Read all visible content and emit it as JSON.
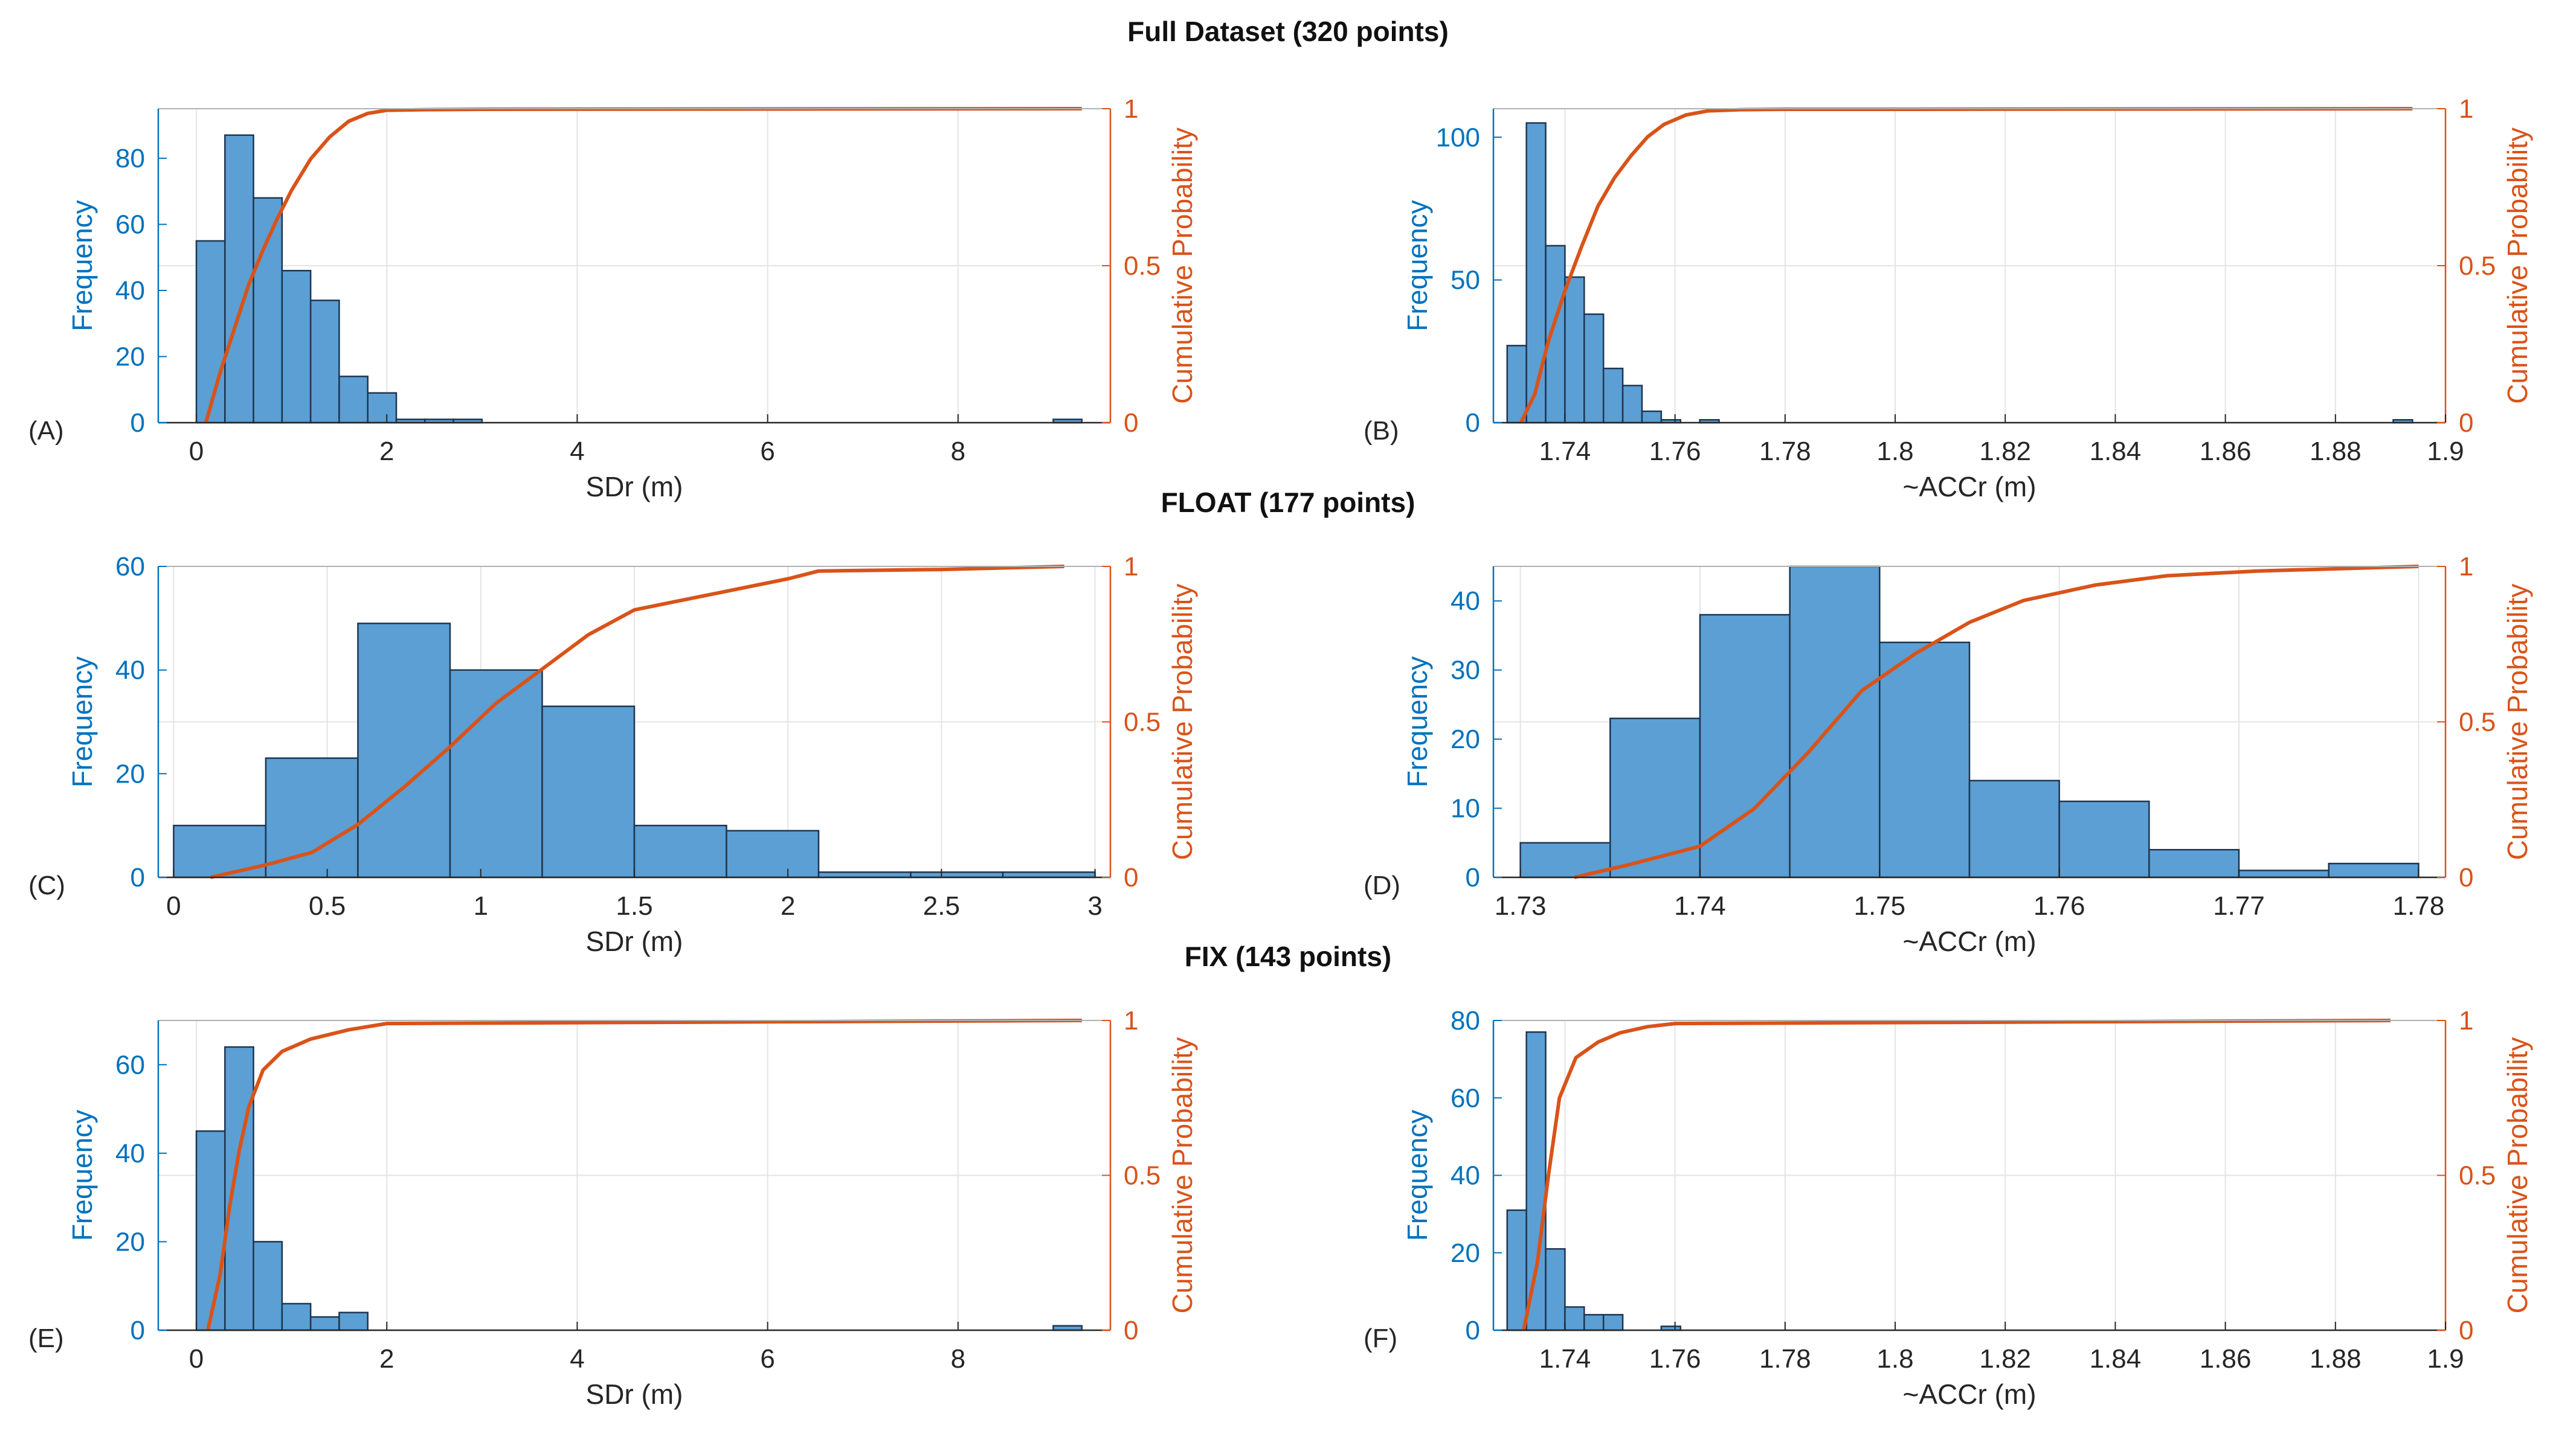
{
  "section_titles": [
    "Full Dataset (320 points)",
    "FLOAT (177 points)",
    "FIX (143 points)"
  ],
  "colors": {
    "bar_fill": "#5B9FD4",
    "bar_edge": "#1f3550",
    "cdf_line": "#D95319",
    "left_axis": "#0072BD",
    "right_axis": "#D95319",
    "grid": "#e4e4e4"
  },
  "chart_data": [
    {
      "panel_label": "(A)",
      "type": "bar",
      "title": "Full Dataset (320 points)",
      "xlabel": "SDr (m)",
      "ylabel": "Frequency",
      "y2label": "Cumulative Probability",
      "xlim": [
        -0.4,
        9.6
      ],
      "ylim": [
        0,
        95
      ],
      "y2lim": [
        0,
        1
      ],
      "xticks": [
        0,
        2,
        4,
        6,
        8
      ],
      "xtick_labels": [
        "0",
        "2",
        "4",
        "6",
        "8"
      ],
      "yticks": [
        0,
        20,
        40,
        60,
        80
      ],
      "ytick_labels": [
        "0",
        "20",
        "40",
        "60",
        "80"
      ],
      "y2ticks": [
        0,
        0.5,
        1
      ],
      "y2tick_labels": [
        "0",
        "0.5",
        "1"
      ],
      "bin_width": 0.3,
      "bin_edges": [
        0.0,
        0.3,
        0.6,
        0.9,
        1.2,
        1.5,
        1.8,
        2.1,
        2.4,
        2.7,
        9.0
      ],
      "values": [
        55,
        87,
        68,
        46,
        37,
        14,
        9,
        1,
        1,
        1,
        1
      ],
      "cdf": {
        "x": [
          0.1,
          0.25,
          0.4,
          0.55,
          0.7,
          0.85,
          1.0,
          1.2,
          1.4,
          1.6,
          1.8,
          2.0,
          2.4,
          3.0,
          9.3
        ],
        "y": [
          0.0,
          0.16,
          0.3,
          0.44,
          0.55,
          0.65,
          0.74,
          0.84,
          0.91,
          0.96,
          0.985,
          0.995,
          0.997,
          0.998,
          1.0
        ]
      }
    },
    {
      "panel_label": "(B)",
      "type": "bar",
      "title": "Full Dataset (320 points)",
      "xlabel": "~ACCr (m)",
      "ylabel": "Frequency",
      "y2label": "Cumulative Probability",
      "xlim": [
        1.727,
        1.9
      ],
      "ylim": [
        0,
        110
      ],
      "y2lim": [
        0,
        1
      ],
      "xticks": [
        1.74,
        1.76,
        1.78,
        1.8,
        1.82,
        1.84,
        1.86,
        1.88,
        1.9
      ],
      "xtick_labels": [
        "1.74",
        "1.76",
        "1.78",
        "1.8",
        "1.82",
        "1.84",
        "1.86",
        "1.88",
        "1.9"
      ],
      "yticks": [
        0,
        50,
        100
      ],
      "ytick_labels": [
        "0",
        "50",
        "100"
      ],
      "y2ticks": [
        0,
        0.5,
        1
      ],
      "y2tick_labels": [
        "0",
        "0.5",
        "1"
      ],
      "bin_width": 0.0035,
      "bin_edges": [
        1.7295,
        1.733,
        1.7365,
        1.74,
        1.7435,
        1.747,
        1.7505,
        1.754,
        1.7575,
        1.761,
        1.7645,
        1.768,
        1.7715,
        1.775,
        1.8905
      ],
      "values": [
        27,
        105,
        62,
        51,
        38,
        19,
        13,
        4,
        1,
        0,
        1,
        0,
        0,
        0,
        1
      ],
      "cdf": {
        "x": [
          1.732,
          1.7345,
          1.737,
          1.74,
          1.743,
          1.746,
          1.749,
          1.752,
          1.755,
          1.758,
          1.762,
          1.766,
          1.772,
          1.78,
          1.8,
          1.894
        ],
        "y": [
          0.0,
          0.09,
          0.26,
          0.42,
          0.56,
          0.69,
          0.78,
          0.85,
          0.91,
          0.95,
          0.98,
          0.993,
          0.997,
          0.998,
          0.998,
          1.0
        ]
      }
    },
    {
      "panel_label": "(C)",
      "type": "bar",
      "title": "FLOAT (177 points)",
      "xlabel": "SDr (m)",
      "ylabel": "Frequency",
      "y2label": "Cumulative Probability",
      "xlim": [
        -0.05,
        3.05
      ],
      "ylim": [
        0,
        60
      ],
      "y2lim": [
        0,
        1
      ],
      "xticks": [
        0,
        0.5,
        1,
        1.5,
        2,
        2.5,
        3
      ],
      "xtick_labels": [
        "0",
        "0.5",
        "1",
        "1.5",
        "2",
        "2.5",
        "3"
      ],
      "yticks": [
        0,
        20,
        40,
        60
      ],
      "ytick_labels": [
        "0",
        "20",
        "40",
        "60"
      ],
      "y2ticks": [
        0,
        0.5,
        1
      ],
      "y2tick_labels": [
        "0",
        "0.5",
        "1"
      ],
      "bin_width": 0.3,
      "bin_edges": [
        0.0,
        0.3,
        0.6,
        0.9,
        1.2,
        1.5,
        1.8,
        2.1,
        2.4,
        2.7
      ],
      "values": [
        10,
        23,
        49,
        40,
        33,
        10,
        9,
        1,
        1,
        1
      ],
      "cdf": {
        "x": [
          0.12,
          0.3,
          0.45,
          0.6,
          0.75,
          0.9,
          1.05,
          1.2,
          1.35,
          1.5,
          1.65,
          1.8,
          2.0,
          2.1,
          2.5,
          2.9
        ],
        "y": [
          0.0,
          0.04,
          0.08,
          0.17,
          0.29,
          0.42,
          0.56,
          0.67,
          0.78,
          0.86,
          0.89,
          0.92,
          0.96,
          0.985,
          0.99,
          1.0
        ]
      }
    },
    {
      "panel_label": "(D)",
      "type": "bar",
      "title": "FLOAT (177 points)",
      "xlabel": "~ACCr (m)",
      "ylabel": "Frequency",
      "y2label": "Cumulative Probability",
      "xlim": [
        1.7285,
        1.7815
      ],
      "ylim": [
        0,
        45
      ],
      "y2lim": [
        0,
        1
      ],
      "xticks": [
        1.73,
        1.74,
        1.75,
        1.76,
        1.77,
        1.78
      ],
      "xtick_labels": [
        "1.73",
        "1.74",
        "1.75",
        "1.76",
        "1.77",
        "1.78"
      ],
      "yticks": [
        0,
        10,
        20,
        30,
        40
      ],
      "ytick_labels": [
        "0",
        "10",
        "20",
        "30",
        "40"
      ],
      "y2ticks": [
        0,
        0.5,
        1
      ],
      "y2tick_labels": [
        "0",
        "0.5",
        "1"
      ],
      "bin_width": 0.005,
      "bin_edges": [
        1.73,
        1.735,
        1.74,
        1.745,
        1.75,
        1.755,
        1.76,
        1.765,
        1.77,
        1.775
      ],
      "values": [
        5,
        23,
        38,
        45,
        34,
        14,
        11,
        4,
        1,
        2
      ],
      "cdf": {
        "x": [
          1.733,
          1.736,
          1.74,
          1.743,
          1.746,
          1.749,
          1.752,
          1.755,
          1.758,
          1.762,
          1.766,
          1.771,
          1.78
        ],
        "y": [
          0.0,
          0.04,
          0.1,
          0.22,
          0.4,
          0.6,
          0.72,
          0.82,
          0.89,
          0.94,
          0.97,
          0.985,
          1.0
        ]
      }
    },
    {
      "panel_label": "(E)",
      "type": "bar",
      "title": "FIX (143 points)",
      "xlabel": "SDr (m)",
      "ylabel": "Frequency",
      "y2label": "Cumulative Probability",
      "xlim": [
        -0.4,
        9.6
      ],
      "ylim": [
        0,
        70
      ],
      "y2lim": [
        0,
        1
      ],
      "xticks": [
        0,
        2,
        4,
        6,
        8
      ],
      "xtick_labels": [
        "0",
        "2",
        "4",
        "6",
        "8"
      ],
      "yticks": [
        0,
        20,
        40,
        60
      ],
      "ytick_labels": [
        "0",
        "20",
        "40",
        "60"
      ],
      "y2ticks": [
        0,
        0.5,
        1
      ],
      "y2tick_labels": [
        "0",
        "0.5",
        "1"
      ],
      "bin_width": 0.3,
      "bin_edges": [
        0.0,
        0.3,
        0.6,
        0.9,
        1.2,
        1.5,
        9.0
      ],
      "values": [
        45,
        64,
        20,
        6,
        3,
        4,
        1
      ],
      "cdf": {
        "x": [
          0.12,
          0.25,
          0.35,
          0.45,
          0.55,
          0.7,
          0.9,
          1.2,
          1.6,
          2.0,
          9.3
        ],
        "y": [
          0.0,
          0.18,
          0.4,
          0.58,
          0.72,
          0.84,
          0.9,
          0.94,
          0.97,
          0.99,
          1.0
        ]
      }
    },
    {
      "panel_label": "(F)",
      "type": "bar",
      "title": "FIX (143 points)",
      "xlabel": "~ACCr (m)",
      "ylabel": "Frequency",
      "y2label": "Cumulative Probability",
      "xlim": [
        1.727,
        1.9
      ],
      "ylim": [
        0,
        80
      ],
      "y2lim": [
        0,
        1
      ],
      "xticks": [
        1.74,
        1.76,
        1.78,
        1.8,
        1.82,
        1.84,
        1.86,
        1.88,
        1.9
      ],
      "xtick_labels": [
        "1.74",
        "1.76",
        "1.78",
        "1.8",
        "1.82",
        "1.84",
        "1.86",
        "1.88",
        "1.9"
      ],
      "yticks": [
        0,
        20,
        40,
        60,
        80
      ],
      "ytick_labels": [
        "0",
        "20",
        "40",
        "60",
        "80"
      ],
      "y2ticks": [
        0,
        0.5,
        1
      ],
      "y2tick_labels": [
        "0",
        "0.5",
        "1"
      ],
      "bin_width": 0.0035,
      "bin_edges": [
        1.7295,
        1.733,
        1.7365,
        1.74,
        1.7435,
        1.747,
        1.7505,
        1.754,
        1.7575,
        1.8865
      ],
      "values": [
        31,
        77,
        21,
        6,
        4,
        4,
        0,
        0,
        1
      ],
      "cdf": {
        "x": [
          1.7325,
          1.735,
          1.737,
          1.739,
          1.742,
          1.746,
          1.75,
          1.755,
          1.76,
          1.89
        ],
        "y": [
          0.0,
          0.22,
          0.5,
          0.75,
          0.88,
          0.93,
          0.96,
          0.98,
          0.99,
          1.0
        ]
      }
    }
  ]
}
